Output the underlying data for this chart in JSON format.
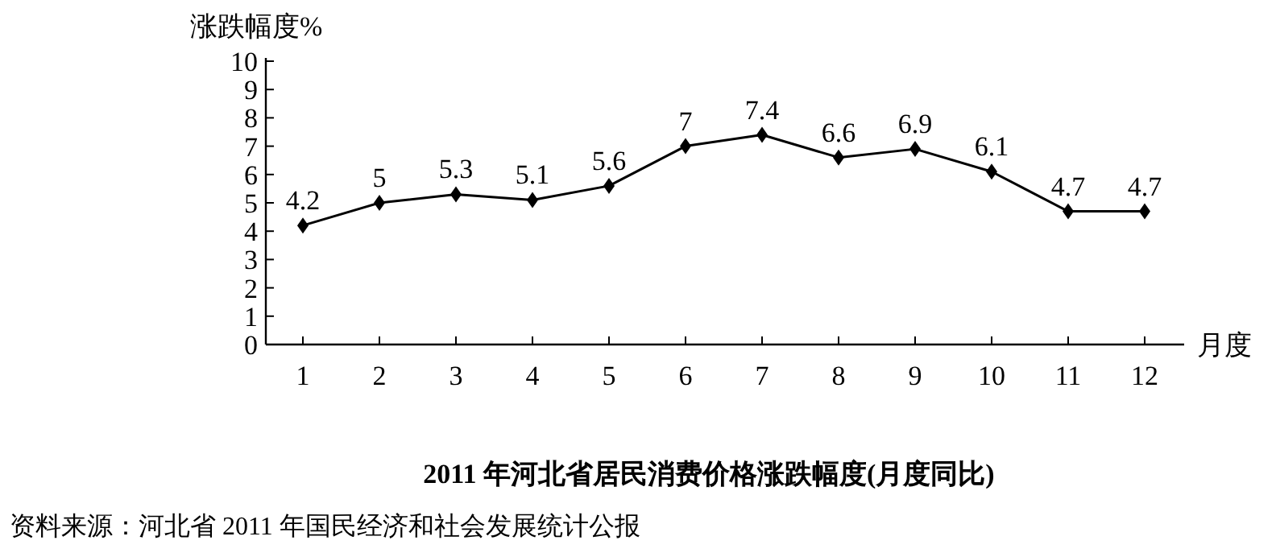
{
  "chart_data": {
    "type": "line",
    "title": "2011 年河北省居民消费价格涨跌幅度(月度同比)",
    "xlabel": "月度",
    "ylabel": "涨跌幅度%",
    "categories": [
      "1",
      "2",
      "3",
      "4",
      "5",
      "6",
      "7",
      "8",
      "9",
      "10",
      "11",
      "12"
    ],
    "values": [
      4.2,
      5,
      5.3,
      5.1,
      5.6,
      7,
      7.4,
      6.6,
      6.9,
      6.1,
      4.7,
      4.7
    ],
    "color": "#000000",
    "marker": "diamond",
    "line_style": "solid",
    "data_labels": true,
    "ylim": [
      0,
      10
    ],
    "yticks": [
      0,
      1,
      2,
      3,
      4,
      5,
      6,
      7,
      8,
      9,
      10
    ],
    "annotations": [
      "资料来源：河北省 2011 年国民经济和社会发展统计公报"
    ]
  }
}
